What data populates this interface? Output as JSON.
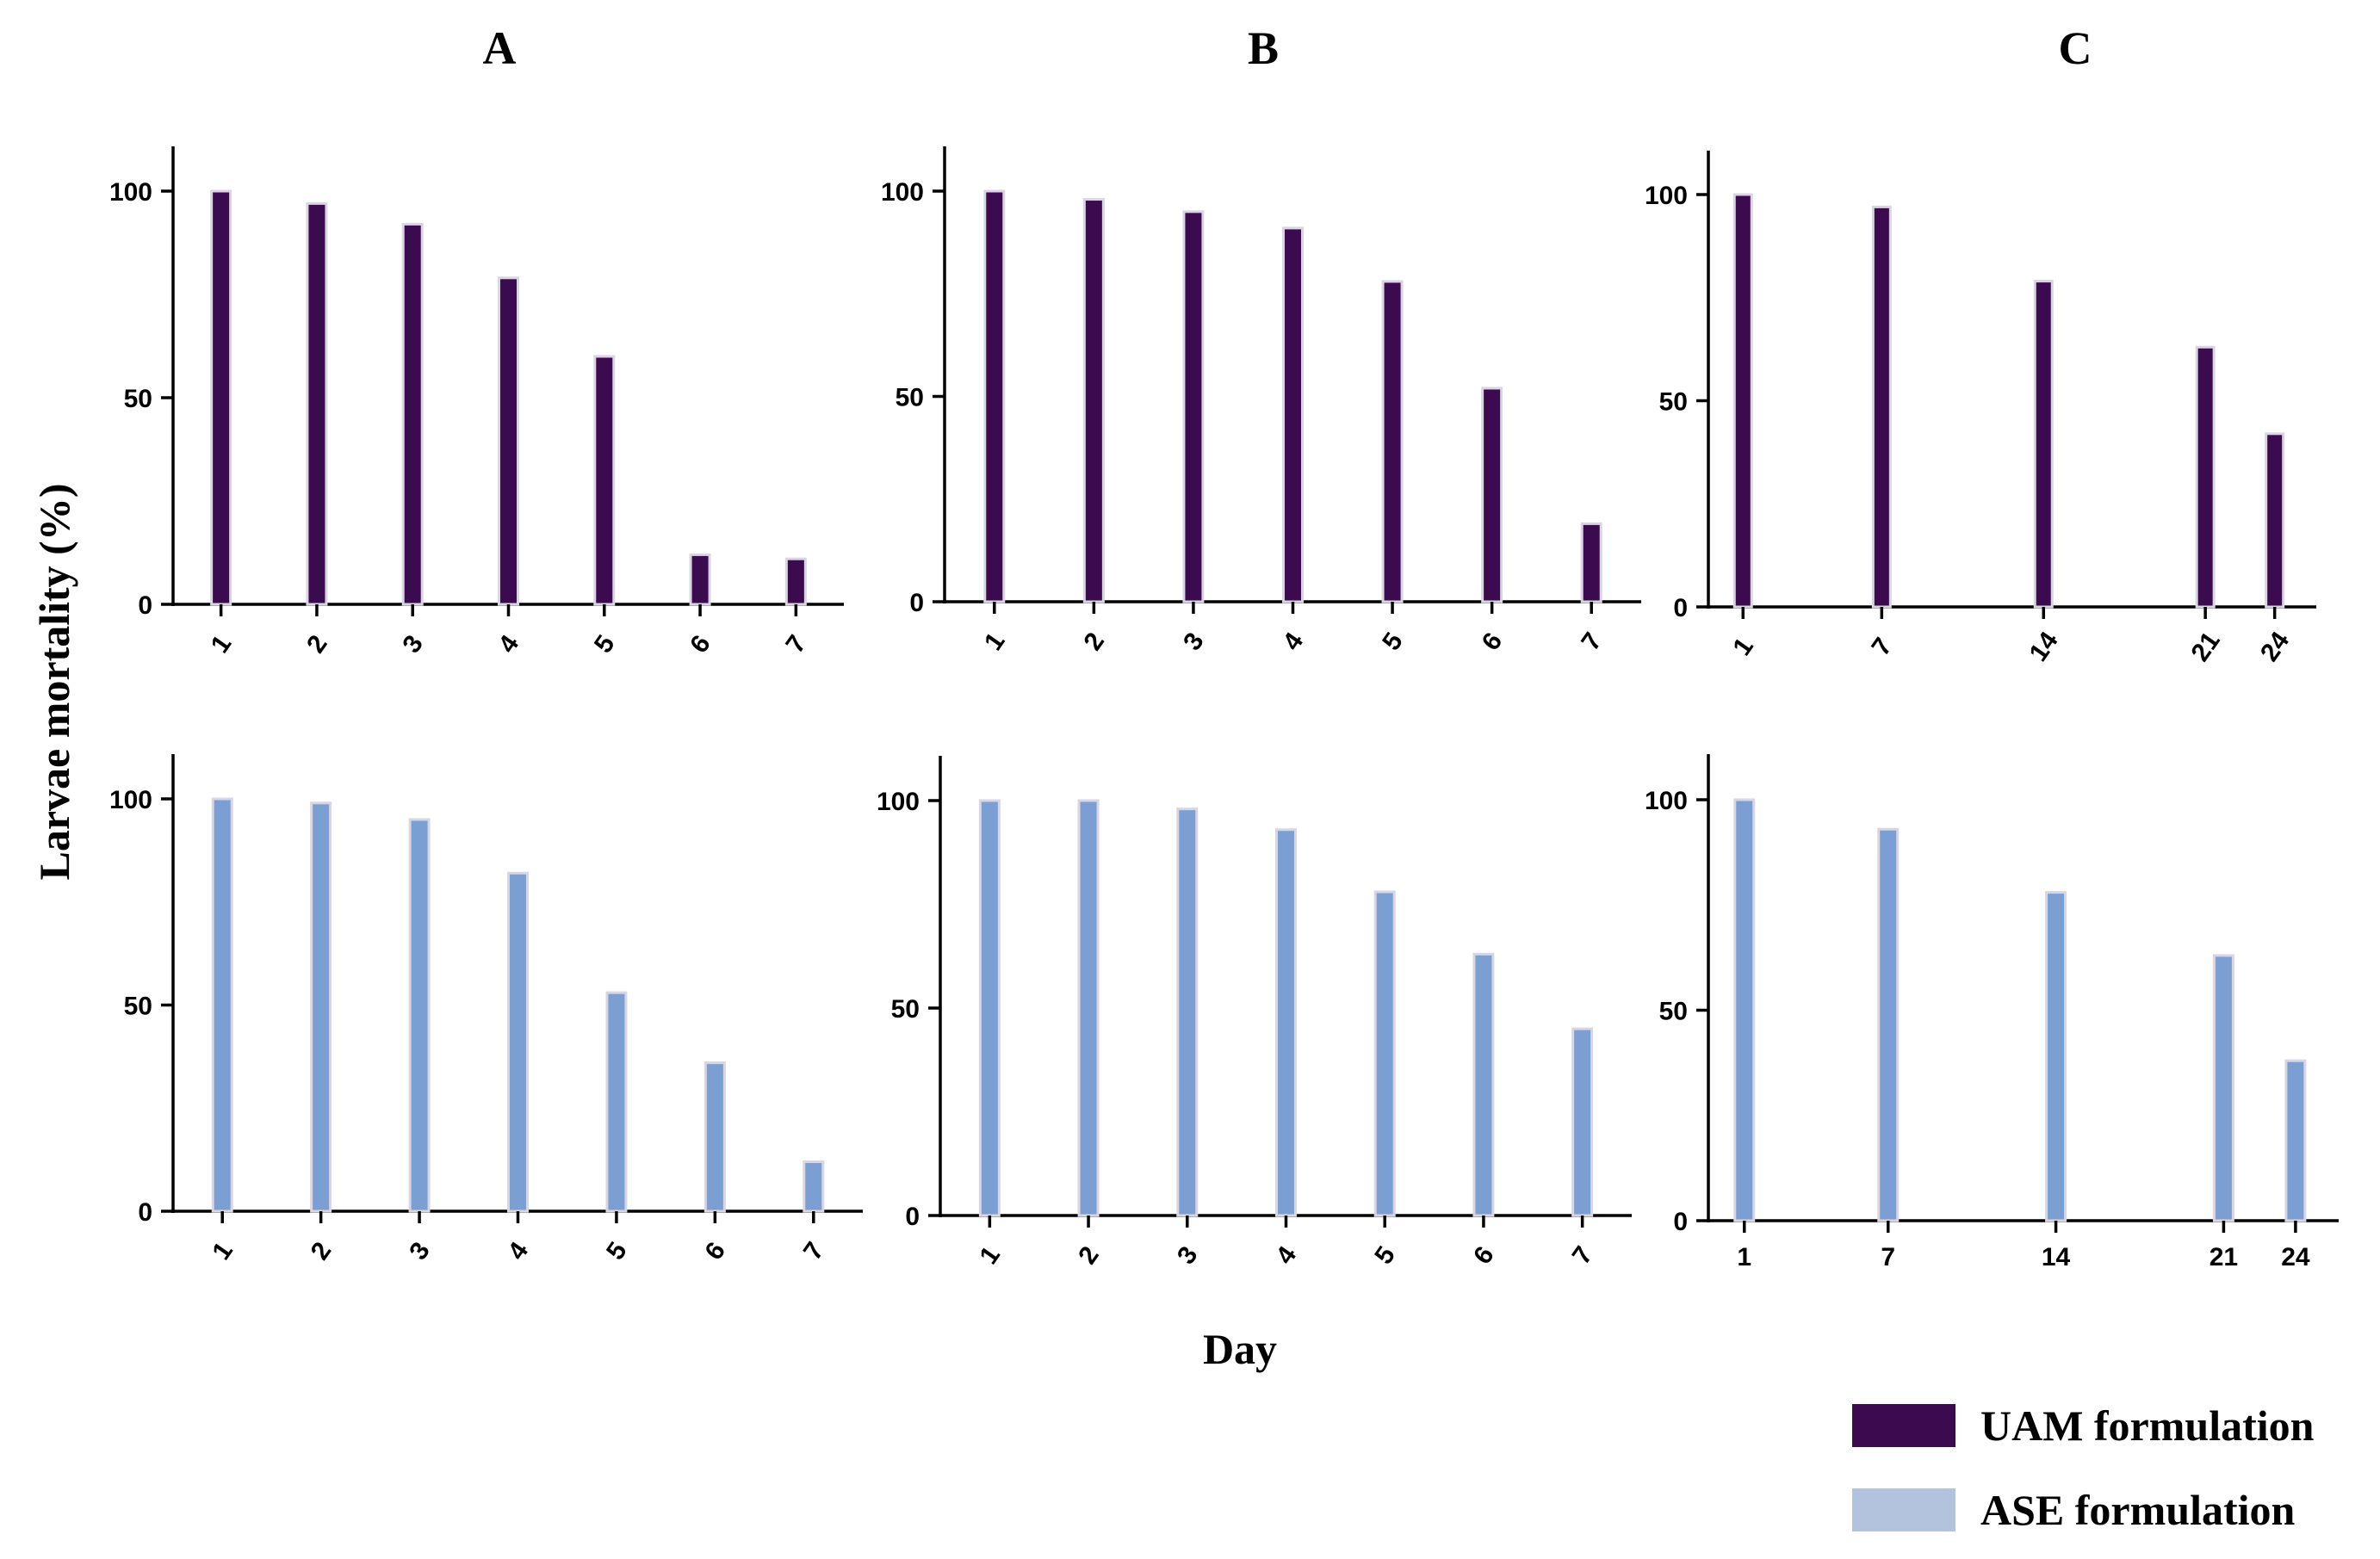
{
  "figure": {
    "panel_letters": [
      "A",
      "B",
      "C"
    ],
    "ylabel": "Larvae mortality  (%)",
    "xlabel": "Day",
    "colors": {
      "uam": "#3b0a4f",
      "ase": "#7c9fd3",
      "ase_legend": "#b3c3de",
      "bar_edge": "#d9d6e2"
    }
  },
  "legend": [
    {
      "label": "UAM formulation",
      "color": "#3b0a4f"
    },
    {
      "label": "ASE formulation",
      "color": "#b3c3de"
    }
  ],
  "chart_data": [
    {
      "type": "bar",
      "panel": "A",
      "series_name": "UAM formulation",
      "categories": [
        "1",
        "2",
        "3",
        "4",
        "5",
        "6",
        "7"
      ],
      "x": [
        1,
        2,
        3,
        4,
        5,
        6,
        7
      ],
      "values": [
        100,
        97,
        92,
        79,
        60,
        12,
        11
      ],
      "xlabel": "Day",
      "ylabel": "Larvae mortality  (%)",
      "ylim": [
        0,
        110
      ],
      "yticks": [
        0,
        50,
        100
      ],
      "xlim": [
        0.5,
        7.5
      ],
      "tick_rotation": "rotated"
    },
    {
      "type": "bar",
      "panel": "B",
      "series_name": "UAM formulation",
      "categories": [
        "1",
        "2",
        "3",
        "4",
        "5",
        "6",
        "7"
      ],
      "x": [
        1,
        2,
        3,
        4,
        5,
        6,
        7
      ],
      "values": [
        100,
        98,
        95,
        91,
        78,
        52,
        19
      ],
      "xlabel": "Day",
      "ylabel": "Larvae mortality  (%)",
      "ylim": [
        0,
        110
      ],
      "yticks": [
        0,
        50,
        100
      ],
      "xlim": [
        0.5,
        7.5
      ],
      "tick_rotation": "rotated"
    },
    {
      "type": "bar",
      "panel": "C",
      "series_name": "UAM formulation",
      "categories": [
        "1",
        "7",
        "14",
        "21",
        "24"
      ],
      "x": [
        1,
        7,
        14,
        21,
        24
      ],
      "values": [
        100,
        97,
        79,
        63,
        42
      ],
      "xlabel": "Day",
      "ylabel": "Larvae mortality  (%)",
      "ylim": [
        0,
        110
      ],
      "yticks": [
        0,
        50,
        100
      ],
      "xlim": [
        -0.5,
        25.8
      ],
      "tick_rotation": "rotated"
    },
    {
      "type": "bar",
      "panel": "A",
      "series_name": "ASE formulation",
      "categories": [
        "1",
        "2",
        "3",
        "4",
        "5",
        "6",
        "7"
      ],
      "x": [
        1,
        2,
        3,
        4,
        5,
        6,
        7
      ],
      "values": [
        100,
        99,
        95,
        82,
        53,
        36,
        12
      ],
      "xlabel": "Day",
      "ylabel": "Larvae mortality  (%)",
      "ylim": [
        0,
        110
      ],
      "yticks": [
        0,
        50,
        100
      ],
      "xlim": [
        0.5,
        7.5
      ],
      "tick_rotation": "rotated"
    },
    {
      "type": "bar",
      "panel": "B",
      "series_name": "ASE formulation",
      "categories": [
        "1",
        "2",
        "3",
        "4",
        "5",
        "6",
        "7"
      ],
      "x": [
        1,
        2,
        3,
        4,
        5,
        6,
        7
      ],
      "values": [
        100,
        100,
        98,
        93,
        78,
        63,
        45
      ],
      "xlabel": "Day",
      "ylabel": "Larvae mortality  (%)",
      "ylim": [
        0,
        110
      ],
      "yticks": [
        0,
        50,
        100
      ],
      "xlim": [
        0.5,
        7.5
      ],
      "tick_rotation": "rotated"
    },
    {
      "type": "bar",
      "panel": "C",
      "series_name": "ASE formulation",
      "categories": [
        "1",
        "7",
        "14",
        "21",
        "24"
      ],
      "x": [
        1,
        7,
        14,
        21,
        24
      ],
      "values": [
        100,
        93,
        78,
        63,
        38
      ],
      "xlabel": "Day",
      "ylabel": "Larvae mortality  (%)",
      "ylim": [
        0,
        110
      ],
      "yticks": [
        0,
        50,
        100
      ],
      "xlim": [
        -0.5,
        25.8
      ],
      "tick_rotation": "horizontal"
    }
  ]
}
